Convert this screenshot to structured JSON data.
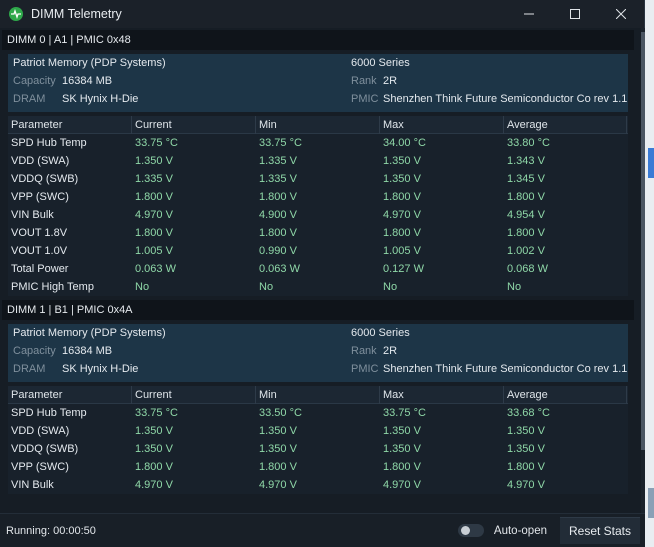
{
  "window": {
    "title": "DIMM Telemetry"
  },
  "columns": [
    "Parameter",
    "Current",
    "Min",
    "Max",
    "Average"
  ],
  "dimms": [
    {
      "header": "DIMM 0 | A1 | PMIC 0x48",
      "vendor": "Patriot Memory (PDP Systems)",
      "series": "6000 Series",
      "capacity_label": "Capacity",
      "capacity": "16384 MB",
      "rank_label": "Rank",
      "rank": "2R",
      "dram_label": "DRAM",
      "dram": "SK Hynix H-Die",
      "pmic_label": "PMIC",
      "pmic": "Shenzhen Think Future Semiconductor Co rev 1.1",
      "rows": [
        [
          "SPD Hub Temp",
          "33.75 °C",
          "33.75 °C",
          "34.00 °C",
          "33.80 °C"
        ],
        [
          "VDD (SWA)",
          "1.350 V",
          "1.335 V",
          "1.350 V",
          "1.343 V"
        ],
        [
          "VDDQ (SWB)",
          "1.335 V",
          "1.335 V",
          "1.350 V",
          "1.345 V"
        ],
        [
          "VPP (SWC)",
          "1.800 V",
          "1.800 V",
          "1.800 V",
          "1.800 V"
        ],
        [
          "VIN Bulk",
          "4.970 V",
          "4.900 V",
          "4.970 V",
          "4.954 V"
        ],
        [
          "VOUT 1.8V",
          "1.800 V",
          "1.800 V",
          "1.800 V",
          "1.800 V"
        ],
        [
          "VOUT 1.0V",
          "1.005 V",
          "0.990 V",
          "1.005 V",
          "1.002 V"
        ],
        [
          "Total Power",
          "0.063 W",
          "0.063 W",
          "0.127 W",
          "0.068 W"
        ],
        [
          "PMIC High Temp",
          "No",
          "No",
          "No",
          "No"
        ]
      ]
    },
    {
      "header": "DIMM 1 | B1 | PMIC 0x4A",
      "vendor": "Patriot Memory (PDP Systems)",
      "series": "6000 Series",
      "capacity_label": "Capacity",
      "capacity": "16384 MB",
      "rank_label": "Rank",
      "rank": "2R",
      "dram_label": "DRAM",
      "dram": "SK Hynix H-Die",
      "pmic_label": "PMIC",
      "pmic": "Shenzhen Think Future Semiconductor Co rev 1.1",
      "rows": [
        [
          "SPD Hub Temp",
          "33.75 °C",
          "33.50 °C",
          "33.75 °C",
          "33.68 °C"
        ],
        [
          "VDD (SWA)",
          "1.350 V",
          "1.350 V",
          "1.350 V",
          "1.350 V"
        ],
        [
          "VDDQ (SWB)",
          "1.350 V",
          "1.350 V",
          "1.350 V",
          "1.350 V"
        ],
        [
          "VPP (SWC)",
          "1.800 V",
          "1.800 V",
          "1.800 V",
          "1.800 V"
        ],
        [
          "VIN Bulk",
          "4.970 V",
          "4.970 V",
          "4.970 V",
          "4.970 V"
        ]
      ]
    }
  ],
  "status": {
    "running": "Running: 00:00:50",
    "autoopen_label": "Auto-open",
    "autoopen_on": false,
    "reset_label": "Reset Stats"
  },
  "colors": {
    "accent_green": "#8fd8a8",
    "info_panel": "#1d3547",
    "app_icon": "#2ea84a"
  }
}
